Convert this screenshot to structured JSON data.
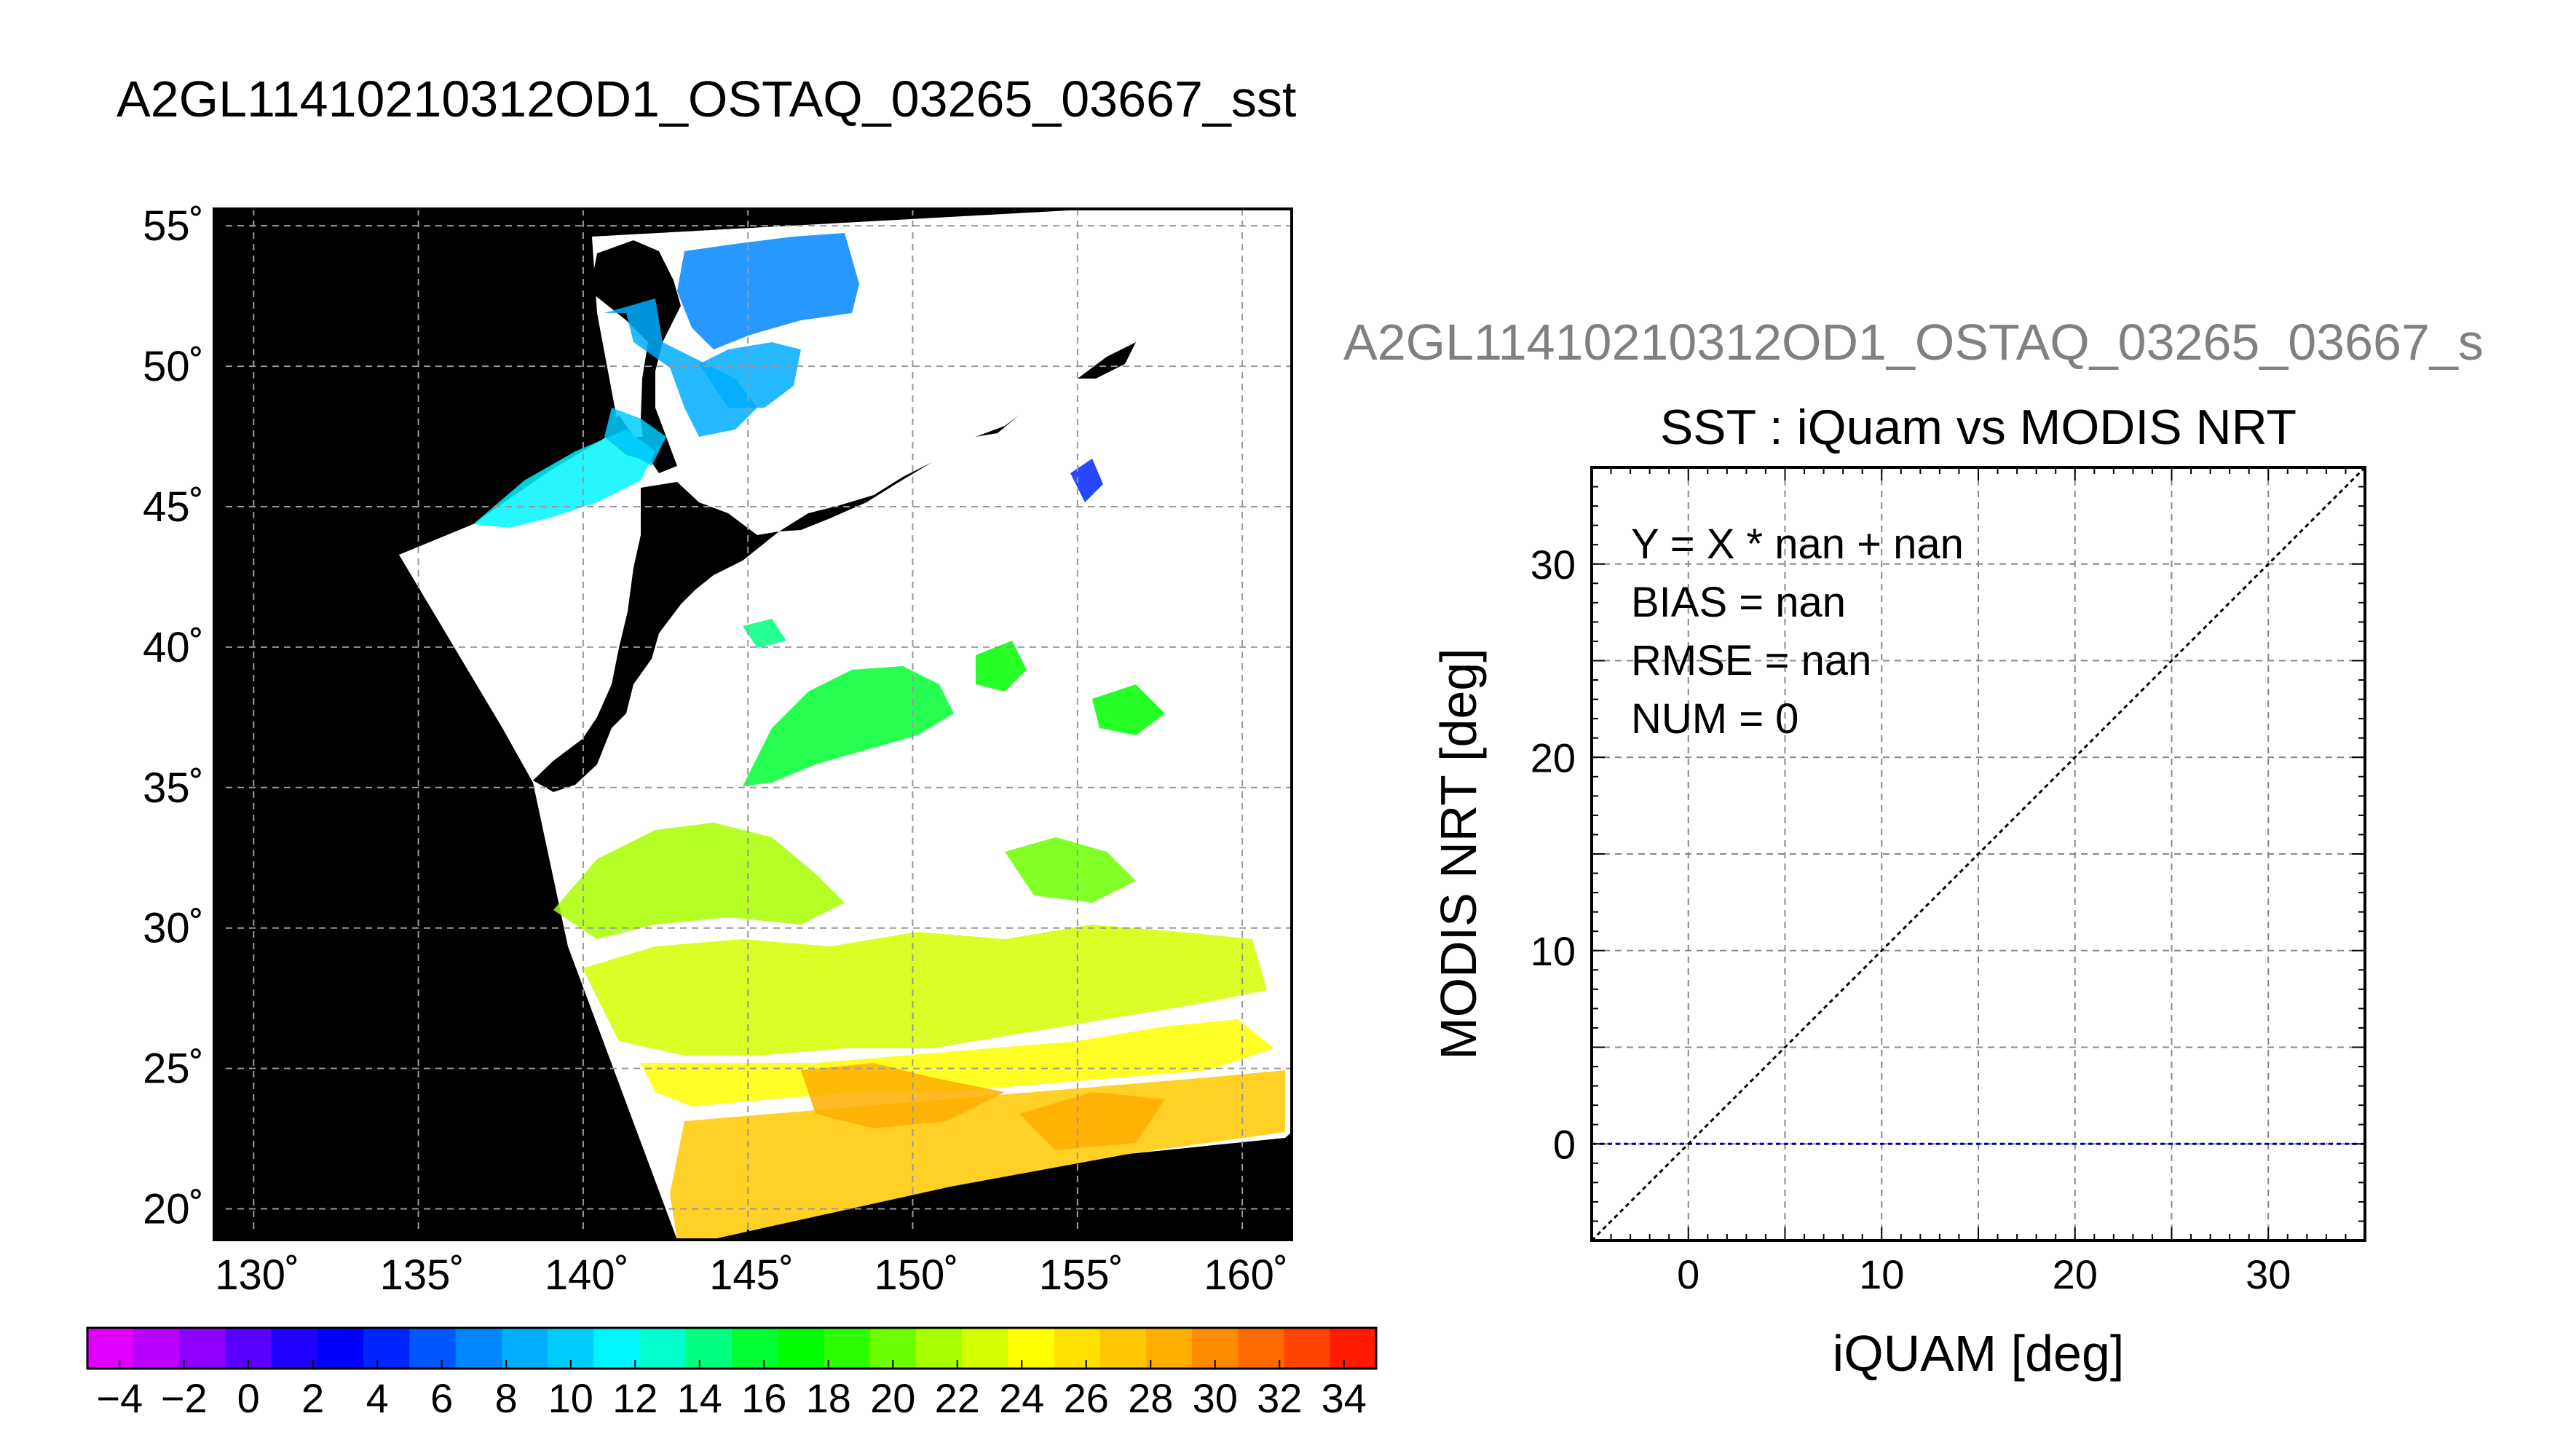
{
  "figure": {
    "main_title": "A2GL11410210312OD1_OSTAQ_03265_03667_sst"
  },
  "chart_data": [
    {
      "type": "heatmap",
      "title": "A2GL11410210312OD1_OSTAQ_03265_03667_sst",
      "x_ticks": [
        130,
        135,
        140,
        145,
        150,
        155,
        160
      ],
      "x_tick_labels": [
        "130˚",
        "135˚",
        "140˚",
        "145˚",
        "150˚",
        "155˚",
        "160˚"
      ],
      "y_ticks": [
        20,
        25,
        30,
        35,
        40,
        45,
        50,
        55
      ],
      "y_tick_labels": [
        "20˚",
        "25˚",
        "30˚",
        "35˚",
        "40˚",
        "45˚",
        "50˚",
        "55˚"
      ],
      "xlim": [
        128.8,
        161.5
      ],
      "ylim": [
        18.9,
        55.6
      ],
      "grid": true,
      "colorbar": {
        "min": -5,
        "max": 35,
        "step": 2,
        "tick_labels": [
          "−4",
          "−2",
          "0",
          "2",
          "4",
          "6",
          "8",
          "10",
          "12",
          "14",
          "16",
          "18",
          "20",
          "22",
          "24",
          "26",
          "28",
          "30",
          "32",
          "34"
        ],
        "colors": [
          "#e100ff",
          "#ba00ff",
          "#8e00ff",
          "#5a00ff",
          "#1f00ff",
          "#0000ff",
          "#0026ff",
          "#0056ff",
          "#0086ff",
          "#00adff",
          "#00ccff",
          "#00f5ff",
          "#00ffcc",
          "#00ff7f",
          "#00ff33",
          "#00ff00",
          "#2bff00",
          "#6cff00",
          "#a8ff00",
          "#d4ff00",
          "#ffff00",
          "#ffe000",
          "#ffc800",
          "#ffae00",
          "#ff8c00",
          "#ff6a00",
          "#ff4300",
          "#ff1a00"
        ]
      },
      "swath_color": "#ffffff",
      "background_color": "#000000"
    },
    {
      "type": "scatter",
      "suptitle": "A2GL11410210312OD1_OSTAQ_03265_03667_s",
      "title": "SST : iQuam vs MODIS NRT",
      "xlabel": "iQUAM [deg]",
      "ylabel": "MODIS NRT [deg]",
      "xlim": [
        -5,
        35
      ],
      "ylim": [
        -5,
        35
      ],
      "x_ticks": [
        0,
        10,
        20,
        30
      ],
      "y_ticks": [
        0,
        10,
        20,
        30
      ],
      "grid": true,
      "points": [],
      "reference_lines": [
        {
          "kind": "identity",
          "color": "#000000"
        },
        {
          "kind": "horizontal",
          "y": 0,
          "color": "#0000aa"
        }
      ],
      "stats": [
        "Y = X * nan + nan",
        "BIAS = nan",
        "RMSE = nan",
        "NUM = 0"
      ]
    }
  ]
}
